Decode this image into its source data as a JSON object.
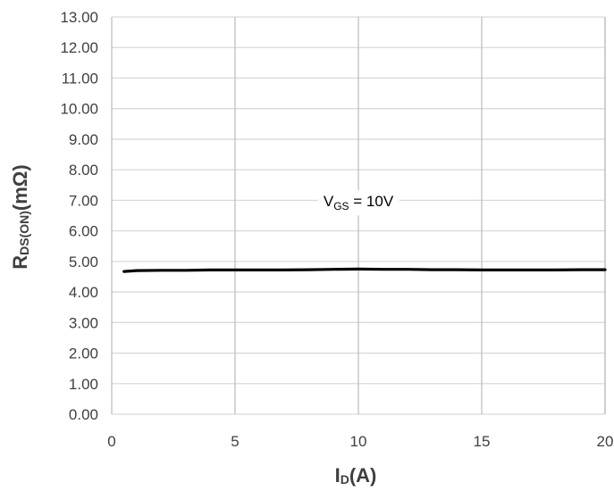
{
  "chart_data": {
    "type": "line",
    "xlabel": {
      "main": "I",
      "sub": "D",
      "rest": "(A)"
    },
    "ylabel": {
      "main": "R",
      "sub": "DS(ON)",
      "rest": "(mΩ)"
    },
    "xlim": [
      0,
      20
    ],
    "ylim": [
      0,
      13
    ],
    "xticks": [
      "0",
      "5",
      "10",
      "15",
      "20"
    ],
    "yticks": [
      "0.00",
      "1.00",
      "2.00",
      "3.00",
      "4.00",
      "5.00",
      "6.00",
      "7.00",
      "8.00",
      "9.00",
      "10.00",
      "11.00",
      "12.00",
      "13.00"
    ],
    "grid": {
      "horizontal": true,
      "vertical": true
    },
    "annotation": {
      "main": "V",
      "sub": "GS",
      "rest": " = 10V",
      "x": 10,
      "y": 6.8
    },
    "series": [
      {
        "color": "#000000",
        "x": [
          0.5,
          1,
          2,
          3,
          4,
          5,
          6,
          7,
          8,
          9,
          10,
          11,
          12,
          13,
          14,
          15,
          16,
          17,
          18,
          19,
          20
        ],
        "y": [
          4.67,
          4.7,
          4.71,
          4.71,
          4.72,
          4.72,
          4.72,
          4.72,
          4.73,
          4.74,
          4.75,
          4.74,
          4.74,
          4.73,
          4.73,
          4.72,
          4.72,
          4.72,
          4.72,
          4.73,
          4.73
        ]
      }
    ]
  }
}
